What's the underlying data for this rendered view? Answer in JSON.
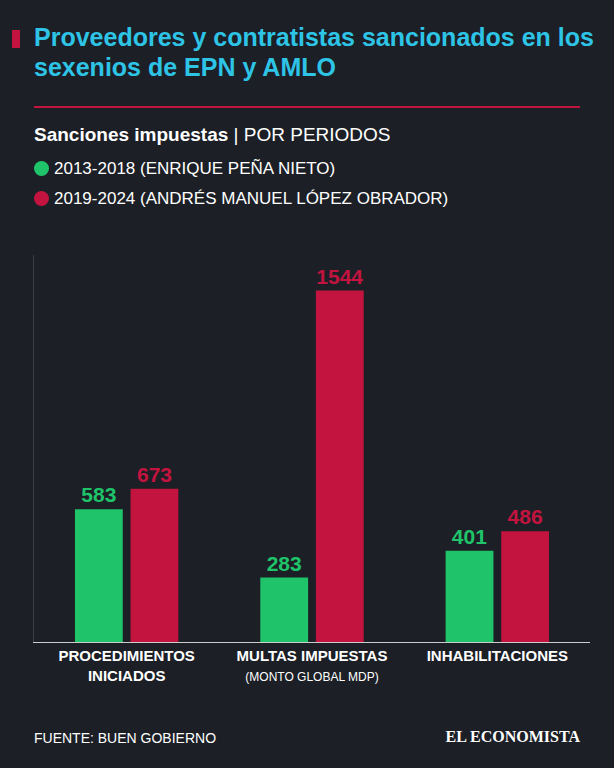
{
  "chart_data": {
    "type": "bar",
    "title": "Proveedores y contratistas sancionados en los sexenios de EPN y AMLO",
    "subtitle": "Sanciones impuestas | POR PERIODOS",
    "categories": [
      "PROCEDIMIENTOS INICIADOS",
      "MULTAS IMPUESTAS (MONTO GLOBAL MDP)",
      "INHABILITACIONES"
    ],
    "series": [
      {
        "name": "2013-2018 (ENRIQUE PEÑA NIETO)",
        "color": "#1fc46a",
        "values": [
          583,
          283,
          401
        ]
      },
      {
        "name": "2019-2024 (ANDRÉS MANUEL LÓPEZ OBRADOR)",
        "color": "#c2143f",
        "values": [
          673,
          1544,
          486
        ]
      }
    ],
    "ylim": [
      0,
      1700
    ],
    "grid": false,
    "data_labels": true,
    "tick_labels": "x",
    "legend": "top-left",
    "source": "FUENTE: BUEN GOBIERNO",
    "brand": "EL ECONOMISTA"
  }
}
